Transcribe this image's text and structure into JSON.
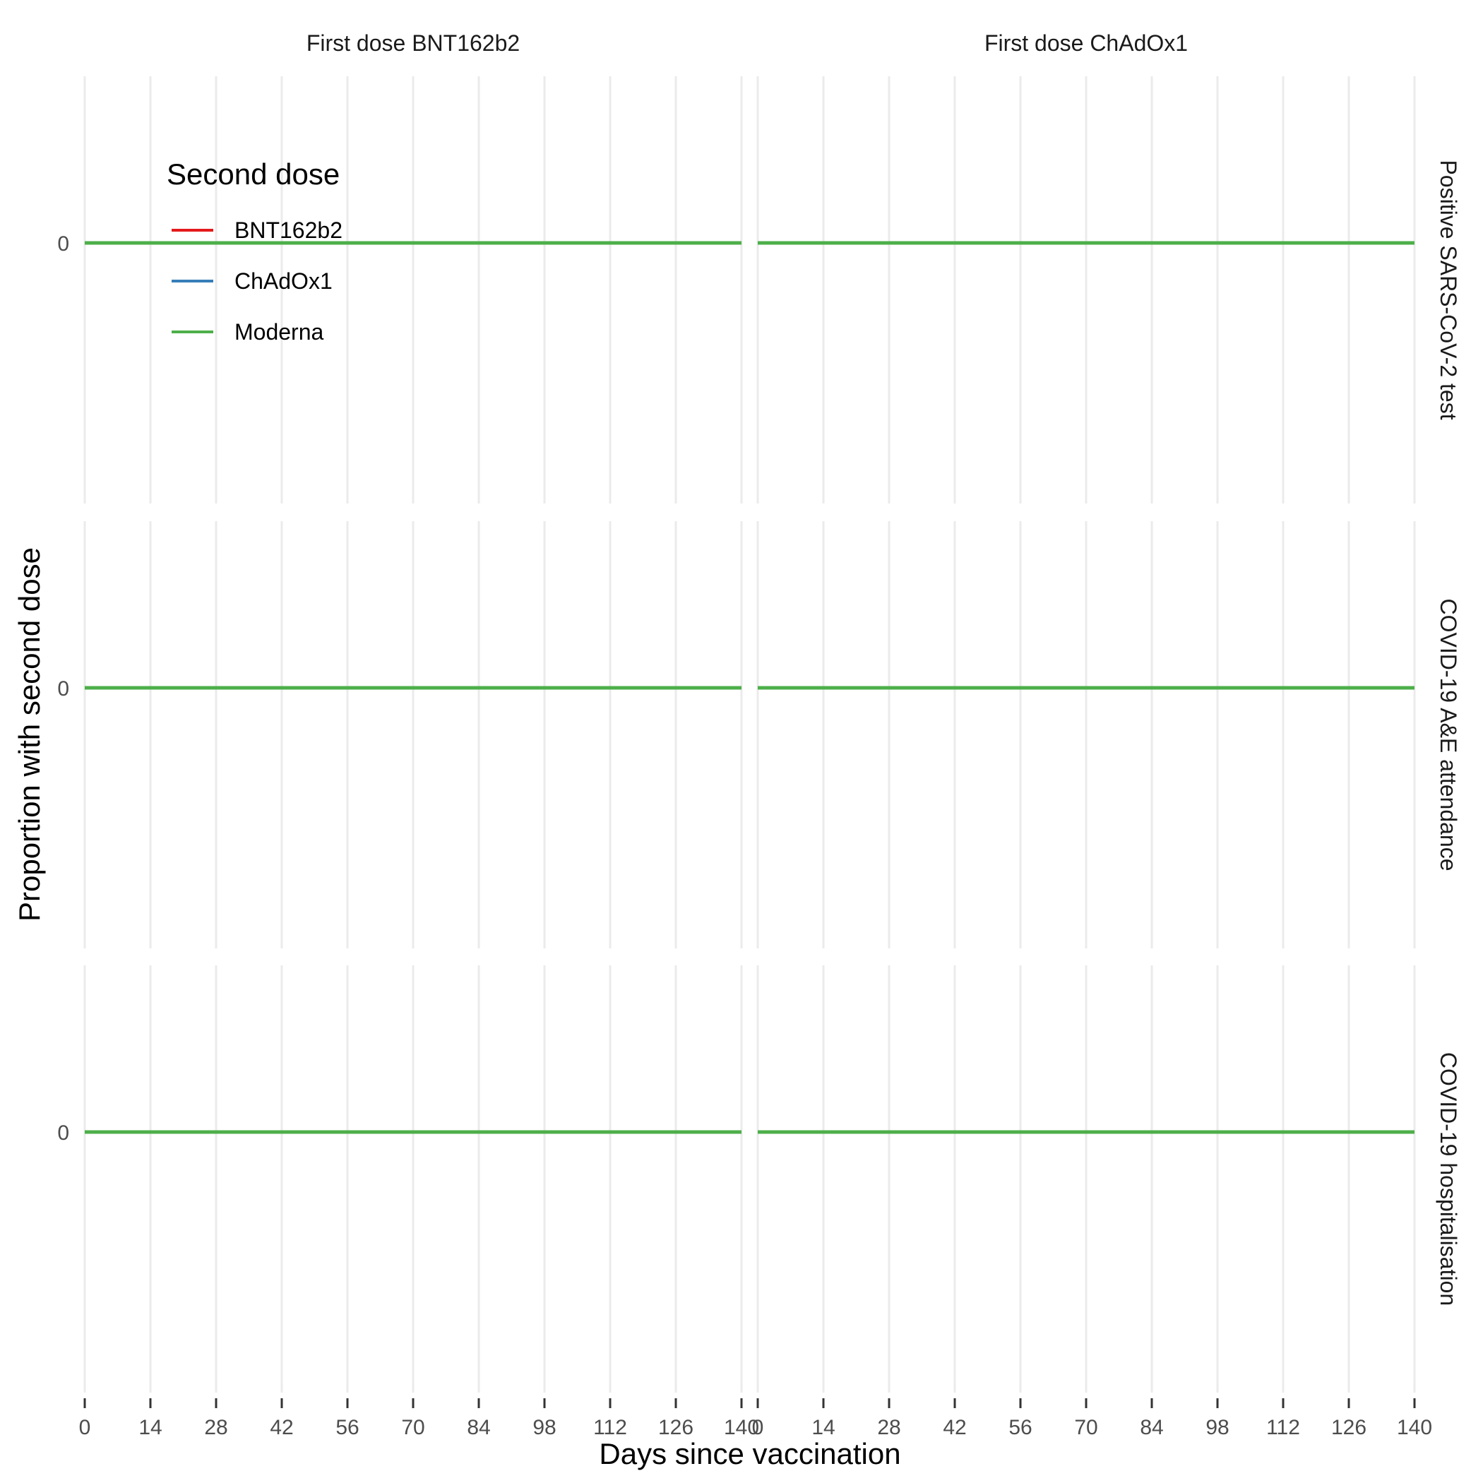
{
  "chart_data": {
    "type": "line",
    "xlabel": "Days since vaccination",
    "ylabel": "Proportion with second dose",
    "x_ticks": [
      0,
      14,
      28,
      42,
      56,
      70,
      84,
      98,
      112,
      126,
      140
    ],
    "y_ticks": [
      0
    ],
    "xlim": [
      0,
      140
    ],
    "grid": "vertical",
    "facet_columns": [
      "First dose BNT162b2",
      "First dose ChAdOx1"
    ],
    "facet_rows": [
      "Positive SARS-CoV-2 test",
      "COVID-19 A&E attendance",
      "COVID-19 hospitalisation"
    ],
    "legend": {
      "title": "Second dose",
      "position": "top-left",
      "entries": [
        {
          "name": "BNT162b2",
          "color": "#e41a1c"
        },
        {
          "name": "ChAdOx1",
          "color": "#377eb8"
        },
        {
          "name": "Moderna",
          "color": "#4daf4a"
        }
      ]
    },
    "series": [
      {
        "name": "BNT162b2",
        "color": "#e41a1c",
        "x": [
          0,
          140
        ],
        "y": [
          0,
          0
        ]
      },
      {
        "name": "ChAdOx1",
        "color": "#377eb8",
        "x": [
          0,
          140
        ],
        "y": [
          0,
          0
        ]
      },
      {
        "name": "Moderna",
        "color": "#4daf4a",
        "x": [
          0,
          140
        ],
        "y": [
          0,
          0
        ]
      }
    ]
  }
}
